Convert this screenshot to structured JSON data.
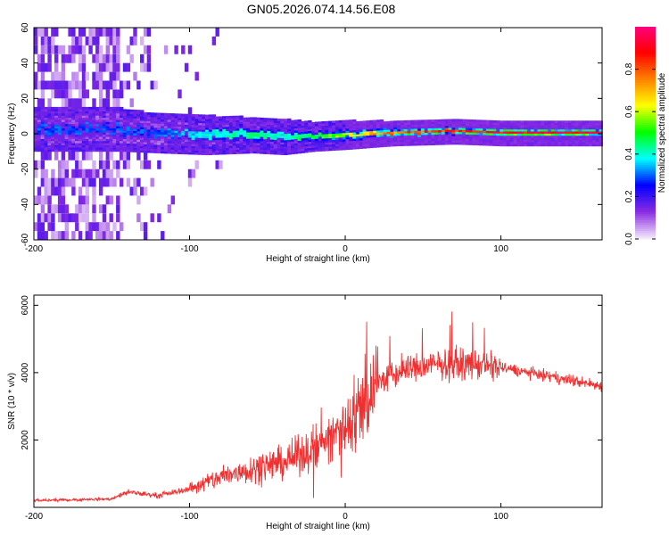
{
  "title": "GN05.2026.074.14.56.E08",
  "chart_data": [
    {
      "type": "heatmap",
      "name": "spectrogram",
      "xlabel": "Height of straight line (km)",
      "ylabel": "Frequency (Hz)",
      "xlim": [
        -200,
        165
      ],
      "ylim": [
        -60,
        60
      ],
      "xticks": [
        "-200",
        "-100",
        "0",
        "100"
      ],
      "xtick_values": [
        -200,
        -100,
        0,
        100
      ],
      "yticks": [
        "-60",
        "-40",
        "-20",
        "0",
        "20",
        "40",
        "60"
      ],
      "ytick_values": [
        -60,
        -40,
        -20,
        0,
        20,
        40,
        60
      ],
      "colorbar": {
        "label": "Normalized spectral amplitude",
        "range": [
          0,
          1
        ],
        "ticks": [
          "0.0",
          "0.2",
          "0.4",
          "0.6",
          "0.8"
        ],
        "tick_values": [
          0.0,
          0.2,
          0.4,
          0.6,
          0.8
        ],
        "colors": [
          "#f4e8fb",
          "#8a2be2",
          "#0000ff",
          "#00ffff",
          "#00ff00",
          "#ffff00",
          "#ff8000",
          "#ff0000",
          "#ff0080"
        ]
      },
      "signal_band": [
        {
          "x": -145,
          "center": 2,
          "half_width": 7,
          "amplitude": 0.3
        },
        {
          "x": -120,
          "center": 0,
          "half_width": 6,
          "amplitude": 0.3
        },
        {
          "x": -90,
          "center": -1,
          "half_width": 6,
          "amplitude": 0.4
        },
        {
          "x": -60,
          "center": -1,
          "half_width": 5,
          "amplitude": 0.45
        },
        {
          "x": -40,
          "center": -2,
          "half_width": 5,
          "amplitude": 0.4
        },
        {
          "x": -20,
          "center": -2,
          "half_width": 3,
          "amplitude": 0.5
        },
        {
          "x": 0,
          "center": -1,
          "half_width": 3,
          "amplitude": 0.6
        },
        {
          "x": 30,
          "center": 0,
          "half_width": 2,
          "amplitude": 0.8
        },
        {
          "x": 70,
          "center": 1,
          "half_width": 2,
          "amplitude": 0.9
        },
        {
          "x": 100,
          "center": 0,
          "half_width": 2,
          "amplitude": 0.95
        },
        {
          "x": 165,
          "center": 0,
          "half_width": 2,
          "amplitude": 0.95
        }
      ]
    },
    {
      "type": "line",
      "name": "snr",
      "xlabel": "Height of straight line (km)",
      "ylabel": "SNR (10 * v/v)",
      "xlim": [
        -200,
        165
      ],
      "ylim": [
        0,
        6300
      ],
      "xticks": [
        "-200",
        "-100",
        "0",
        "100"
      ],
      "xtick_values": [
        -200,
        -100,
        0,
        100
      ],
      "yticks": [
        "2000",
        "4000",
        "6000"
      ],
      "ytick_values": [
        2000,
        4000,
        6000
      ],
      "color": "#f03030",
      "trend": [
        {
          "x": -200,
          "y": 200
        },
        {
          "x": -150,
          "y": 250
        },
        {
          "x": -140,
          "y": 450
        },
        {
          "x": -120,
          "y": 350
        },
        {
          "x": -100,
          "y": 550
        },
        {
          "x": -80,
          "y": 900
        },
        {
          "x": -60,
          "y": 1150
        },
        {
          "x": -40,
          "y": 1350
        },
        {
          "x": -20,
          "y": 1700
        },
        {
          "x": 0,
          "y": 2400
        },
        {
          "x": 10,
          "y": 3000
        },
        {
          "x": 20,
          "y": 3700
        },
        {
          "x": 40,
          "y": 4100
        },
        {
          "x": 60,
          "y": 4250
        },
        {
          "x": 80,
          "y": 4250
        },
        {
          "x": 100,
          "y": 4150
        },
        {
          "x": 130,
          "y": 3900
        },
        {
          "x": 165,
          "y": 3600
        }
      ]
    }
  ]
}
